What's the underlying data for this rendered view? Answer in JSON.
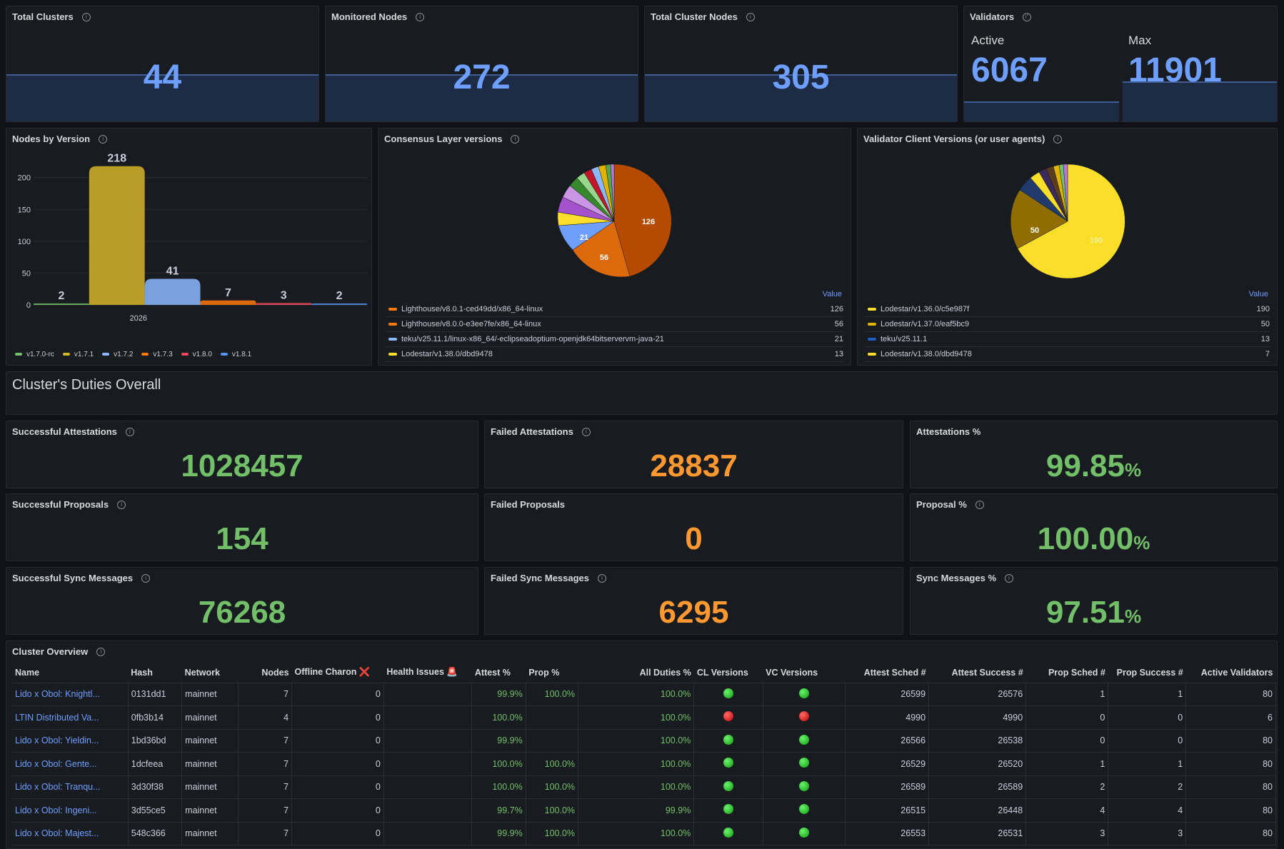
{
  "top_stats": [
    {
      "title": "Total Clusters",
      "value": "44"
    },
    {
      "title": "Monitored Nodes",
      "value": "272"
    },
    {
      "title": "Total Cluster Nodes",
      "value": "305"
    }
  ],
  "validators": {
    "title": "Validators",
    "active_label": "Active",
    "active_value": "6067",
    "max_label": "Max",
    "max_value": "11901"
  },
  "nodes_by_version": {
    "title": "Nodes by Version",
    "chart_data": {
      "type": "bar",
      "categories": [
        "v1.7.0-rc",
        "v1.7.1",
        "v1.7.2",
        "v1.7.3",
        "v1.8.0",
        "v1.8.1"
      ],
      "values": [
        2,
        218,
        41,
        7,
        3,
        2
      ],
      "colors": [
        "#73bf69",
        "#d5b528",
        "#8ab8ff",
        "#ff780a",
        "#f2495c",
        "#5794f2"
      ],
      "xlabel": "2026",
      "yticks": [
        0,
        50,
        100,
        150,
        200
      ],
      "ylim": [
        0,
        230
      ]
    }
  },
  "cl_versions": {
    "title": "Consensus Layer versions",
    "value_header": "Value",
    "slice_labels": [
      "126",
      "56",
      "21"
    ],
    "legend": [
      {
        "label": "Lighthouse/v8.0.1-ced49dd/x86_64-linux",
        "value": "126",
        "color": "#ff780a"
      },
      {
        "label": "Lighthouse/v8.0.0-e3ee7fe/x86_64-linux",
        "value": "56",
        "color": "#ff780a"
      },
      {
        "label": "teku/v25.11.1/linux-x86_64/-eclipseadoptium-openjdk64bitservervm-java-21",
        "value": "21",
        "color": "#8ab8ff"
      },
      {
        "label": "Lodestar/v1.38.0/dbd9478",
        "value": "13",
        "color": "#fade2a"
      }
    ]
  },
  "vc_versions": {
    "title": "Validator Client Versions (or user agents)",
    "value_header": "Value",
    "slice_labels": [
      "50",
      "190"
    ],
    "legend": [
      {
        "label": "Lodestar/v1.36.0/c5e987f",
        "value": "190",
        "color": "#fade2a"
      },
      {
        "label": "Lodestar/v1.37.0/eaf5bc9",
        "value": "50",
        "color": "#e0b400"
      },
      {
        "label": "teku/v25.11.1",
        "value": "13",
        "color": "#1f60c4"
      },
      {
        "label": "Lodestar/v1.38.0/dbd9478",
        "value": "7",
        "color": "#fade2a"
      }
    ]
  },
  "duties": {
    "title": "Cluster's Duties Overall",
    "stats": [
      {
        "title": "Successful Attestations",
        "value": "1028457",
        "unit": "",
        "kind": "green"
      },
      {
        "title": "Failed Attestations",
        "value": "28837",
        "unit": "",
        "kind": "orange"
      },
      {
        "title": "Attestations %",
        "value": "99.85",
        "unit": "%",
        "kind": "green"
      },
      {
        "title": "Successful Proposals",
        "value": "154",
        "unit": "",
        "kind": "green"
      },
      {
        "title": "Failed Proposals",
        "value": "0",
        "unit": "",
        "kind": "orange"
      },
      {
        "title": "Proposal %",
        "value": "100.00",
        "unit": "%",
        "kind": "green"
      },
      {
        "title": "Successful Sync Messages",
        "value": "76268",
        "unit": "",
        "kind": "green"
      },
      {
        "title": "Failed Sync Messages",
        "value": "6295",
        "unit": "",
        "kind": "orange"
      },
      {
        "title": "Sync Messages %",
        "value": "97.51",
        "unit": "%",
        "kind": "green"
      }
    ]
  },
  "overview": {
    "title": "Cluster Overview",
    "columns": [
      "Name",
      "Hash",
      "Network",
      "Nodes",
      "Offline Charon ❌",
      "Health Issues 🚨",
      "Attest %",
      "Prop %",
      "All Duties %",
      "CL Versions",
      "VC Versions",
      "Attest Sched #",
      "Attest Success #",
      "Prop Sched #",
      "Prop Success #",
      "Active Validators"
    ],
    "rows": [
      {
        "name": "Lido x Obol: Knightl...",
        "hash": "0131dd1",
        "network": "mainnet",
        "nodes": "7",
        "offline": "0",
        "health": "",
        "attest": "99.9%",
        "prop": "100.0%",
        "all": "100.0%",
        "cl": "green",
        "vc": "green",
        "asched": "26599",
        "asucc": "26576",
        "psched": "1",
        "psucc": "1",
        "active": "80"
      },
      {
        "name": "LTIN Distributed Va...",
        "hash": "0fb3b14",
        "network": "mainnet",
        "nodes": "4",
        "offline": "0",
        "health": "",
        "attest": "100.0%",
        "prop": "",
        "all": "100.0%",
        "cl": "red",
        "vc": "red",
        "asched": "4990",
        "asucc": "4990",
        "psched": "0",
        "psucc": "0",
        "active": "6"
      },
      {
        "name": "Lido x Obol: Yieldin...",
        "hash": "1bd36bd",
        "network": "mainnet",
        "nodes": "7",
        "offline": "0",
        "health": "",
        "attest": "99.9%",
        "prop": "",
        "all": "100.0%",
        "cl": "green",
        "vc": "green",
        "asched": "26566",
        "asucc": "26538",
        "psched": "0",
        "psucc": "0",
        "active": "80"
      },
      {
        "name": "Lido x Obol: Gente...",
        "hash": "1dcfeea",
        "network": "mainnet",
        "nodes": "7",
        "offline": "0",
        "health": "",
        "attest": "100.0%",
        "prop": "100.0%",
        "all": "100.0%",
        "cl": "green",
        "vc": "green",
        "asched": "26529",
        "asucc": "26520",
        "psched": "1",
        "psucc": "1",
        "active": "80"
      },
      {
        "name": "Lido x Obol: Tranqu...",
        "hash": "3d30f38",
        "network": "mainnet",
        "nodes": "7",
        "offline": "0",
        "health": "",
        "attest": "100.0%",
        "prop": "100.0%",
        "all": "100.0%",
        "cl": "green",
        "vc": "green",
        "asched": "26589",
        "asucc": "26589",
        "psched": "2",
        "psucc": "2",
        "active": "80"
      },
      {
        "name": "Lido x Obol: Ingeni...",
        "hash": "3d55ce5",
        "network": "mainnet",
        "nodes": "7",
        "offline": "0",
        "health": "",
        "attest": "99.7%",
        "prop": "100.0%",
        "all": "99.9%",
        "cl": "green",
        "vc": "green",
        "asched": "26515",
        "asucc": "26448",
        "psched": "4",
        "psucc": "4",
        "active": "80"
      },
      {
        "name": "Lido x Obol: Majest...",
        "hash": "548c366",
        "network": "mainnet",
        "nodes": "7",
        "offline": "0",
        "health": "",
        "attest": "99.9%",
        "prop": "100.0%",
        "all": "100.0%",
        "cl": "green",
        "vc": "green",
        "asched": "26553",
        "asucc": "26531",
        "psched": "3",
        "psucc": "3",
        "active": "80"
      }
    ]
  }
}
